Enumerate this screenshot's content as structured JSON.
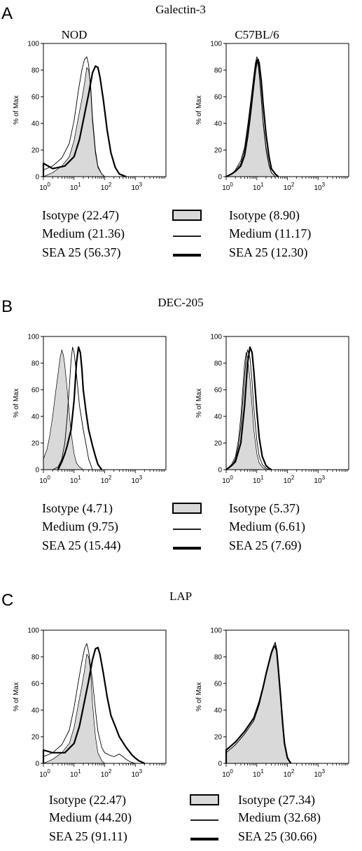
{
  "colors": {
    "isotype_fill": "#d9d9d9",
    "line": "#000000",
    "background": "#ffffff"
  },
  "chart_data": [
    {
      "type": "area",
      "panel_letter": "A",
      "title": "Galectin-3",
      "legend": [
        {
          "series": "Isotype",
          "left_label": "Isotype (22.47)",
          "right_label": "Isotype (8.90)"
        },
        {
          "series": "Medium",
          "left_label": "Medium (21.36)",
          "right_label": "Medium (11.17)"
        },
        {
          "series": "SEA 25",
          "left_label": "SEA 25 (56.37)",
          "right_label": "SEA 25 (12.30)"
        }
      ],
      "plots": [
        {
          "subtitle": "NOD",
          "ylabel": "% of Max",
          "ylim": [
            0,
            100
          ],
          "yticks": [
            "0",
            "20",
            "40",
            "60",
            "80",
            "100"
          ],
          "xscale": "log",
          "xlim": [
            1,
            10000
          ],
          "xticks": [
            "10^0",
            "10^1",
            "10^2",
            "10^3"
          ],
          "series": [
            {
              "name": "Isotype",
              "x": [
                1,
                2,
                4,
                7,
                10,
                14,
                18,
                22,
                26,
                30,
                35,
                40,
                50,
                60,
                80,
                100
              ],
              "y": [
                0,
                3,
                8,
                15,
                27,
                45,
                58,
                70,
                82,
                80,
                68,
                45,
                20,
                8,
                2,
                0
              ]
            },
            {
              "name": "Medium",
              "x": [
                1,
                2,
                4,
                7,
                10,
                14,
                18,
                22,
                26,
                30,
                35,
                40,
                50,
                60,
                80,
                100
              ],
              "y": [
                5,
                8,
                14,
                25,
                42,
                65,
                80,
                88,
                90,
                84,
                65,
                42,
                18,
                7,
                2,
                0
              ]
            },
            {
              "name": "SEA 25",
              "x": [
                1,
                2,
                5,
                10,
                15,
                20,
                30,
                40,
                50,
                60,
                70,
                90,
                120,
                160,
                220,
                300,
                500
              ],
              "y": [
                10,
                6,
                8,
                15,
                28,
                42,
                62,
                78,
                83,
                82,
                75,
                58,
                35,
                18,
                7,
                2,
                0
              ]
            }
          ]
        },
        {
          "subtitle": "C57BL/6",
          "ylabel": "% of Max",
          "ylim": [
            0,
            100
          ],
          "yticks": [
            "0",
            "20",
            "40",
            "60",
            "80",
            "100"
          ],
          "xscale": "log",
          "xlim": [
            1,
            10000
          ],
          "xticks": [
            "10^0",
            "10^1",
            "10^2",
            "10^3"
          ],
          "series": [
            {
              "name": "Isotype",
              "x": [
                1,
                1.5,
                2,
                3,
                4,
                5,
                6,
                7,
                8,
                9,
                10,
                11,
                12,
                14,
                16,
                20,
                25,
                30,
                40
              ],
              "y": [
                0,
                2,
                4,
                10,
                20,
                36,
                50,
                62,
                74,
                84,
                88,
                84,
                76,
                58,
                40,
                20,
                8,
                3,
                0
              ]
            },
            {
              "name": "Medium",
              "x": [
                1,
                1.5,
                2,
                3,
                4,
                5,
                6,
                7,
                8,
                9,
                10,
                11,
                12,
                14,
                16,
                20,
                25,
                30,
                40
              ],
              "y": [
                0,
                2,
                5,
                12,
                22,
                38,
                52,
                65,
                76,
                85,
                90,
                87,
                78,
                60,
                42,
                22,
                9,
                3,
                0
              ]
            },
            {
              "name": "SEA 25",
              "x": [
                1,
                1.5,
                2,
                3,
                4,
                5,
                6,
                7,
                8,
                9,
                10,
                11,
                12,
                14,
                16,
                20,
                25,
                30,
                40,
                50
              ],
              "y": [
                0,
                2,
                4,
                8,
                16,
                30,
                44,
                58,
                70,
                80,
                86,
                88,
                85,
                72,
                55,
                32,
                15,
                6,
                2,
                0
              ]
            }
          ]
        }
      ]
    },
    {
      "type": "area",
      "panel_letter": "B",
      "title": "DEC-205",
      "legend": [
        {
          "series": "Isotype",
          "left_label": "Isotype (4.71)",
          "right_label": "Isotype (5.37)"
        },
        {
          "series": "Medium",
          "left_label": "Medium (9.75)",
          "right_label": "Medium (6.61)"
        },
        {
          "series": "SEA 25",
          "left_label": "SEA 25 (15.44)",
          "right_label": "SEA 25 (7.69)"
        }
      ],
      "plots": [
        {
          "subtitle": "",
          "ylabel": "% of Max",
          "ylim": [
            0,
            100
          ],
          "yticks": [
            "0",
            "20",
            "40",
            "60",
            "80",
            "100"
          ],
          "xscale": "log",
          "xlim": [
            1,
            10000
          ],
          "xticks": [
            "10^0",
            "10^1",
            "10^2",
            "10^3"
          ],
          "series": [
            {
              "name": "Isotype",
              "x": [
                1,
                1.3,
                1.6,
                2,
                2.5,
                3,
                3.5,
                4,
                4.5,
                5,
                6,
                7,
                8,
                10,
                12,
                15,
                20
              ],
              "y": [
                8,
                15,
                25,
                40,
                58,
                72,
                84,
                90,
                86,
                78,
                60,
                42,
                28,
                12,
                5,
                2,
                0
              ]
            },
            {
              "name": "Medium",
              "x": [
                2,
                3,
                4,
                5,
                6,
                7,
                8,
                9,
                10,
                12,
                15,
                20,
                25,
                30,
                40
              ],
              "y": [
                0,
                2,
                8,
                20,
                40,
                62,
                82,
                92,
                88,
                72,
                48,
                30,
                18,
                8,
                0
              ]
            },
            {
              "name": "SEA 25",
              "x": [
                3,
                4,
                5,
                6,
                8,
                10,
                12,
                14,
                16,
                18,
                20,
                25,
                30,
                40,
                50,
                60,
                80
              ],
              "y": [
                0,
                6,
                12,
                18,
                30,
                52,
                80,
                92,
                88,
                76,
                60,
                42,
                30,
                18,
                10,
                4,
                0
              ]
            }
          ]
        },
        {
          "subtitle": "",
          "ylabel": "% of Max",
          "ylim": [
            0,
            100
          ],
          "yticks": [
            "0",
            "20",
            "40",
            "60",
            "80",
            "100"
          ],
          "xscale": "log",
          "xlim": [
            1,
            10000
          ],
          "xticks": [
            "10^0",
            "10^1",
            "10^2",
            "10^3"
          ],
          "series": [
            {
              "name": "Isotype",
              "x": [
                1,
                1.5,
                2,
                2.5,
                3,
                3.5,
                4,
                4.5,
                5,
                6,
                7,
                8,
                10,
                12,
                15,
                20
              ],
              "y": [
                0,
                4,
                10,
                22,
                40,
                62,
                80,
                88,
                84,
                68,
                48,
                30,
                12,
                5,
                2,
                0
              ]
            },
            {
              "name": "Medium",
              "x": [
                1,
                1.5,
                2,
                2.5,
                3,
                3.5,
                4,
                4.5,
                5,
                6,
                7,
                8,
                10,
                12,
                15,
                20,
                25
              ],
              "y": [
                0,
                3,
                8,
                18,
                32,
                52,
                70,
                84,
                90,
                84,
                66,
                46,
                22,
                10,
                4,
                1,
                0
              ]
            },
            {
              "name": "SEA 25",
              "x": [
                1,
                1.5,
                2,
                3,
                4,
                5,
                6,
                7,
                8,
                10,
                12,
                15,
                20,
                25,
                30
              ],
              "y": [
                0,
                3,
                6,
                20,
                48,
                80,
                92,
                88,
                74,
                44,
                24,
                10,
                3,
                1,
                0
              ]
            }
          ]
        }
      ]
    },
    {
      "type": "area",
      "panel_letter": "C",
      "title": "LAP",
      "legend": [
        {
          "series": "Isotype",
          "left_label": "Isotype (22.47)",
          "right_label": "Isotype (27.34)"
        },
        {
          "series": "Medium",
          "left_label": "Medium (44.20)",
          "right_label": "Medium (32.68)"
        },
        {
          "series": "SEA 25",
          "left_label": "SEA 25 (91.11)",
          "right_label": "SEA 25 (30.66)"
        }
      ],
      "plots": [
        {
          "subtitle": "",
          "ylabel": "% of Max",
          "ylim": [
            0,
            100
          ],
          "yticks": [
            "0",
            "20",
            "40",
            "60",
            "80",
            "100"
          ],
          "xscale": "log",
          "xlim": [
            1,
            10000
          ],
          "xticks": [
            "10^0",
            "10^1",
            "10^2",
            "10^3"
          ],
          "series": [
            {
              "name": "Isotype",
              "x": [
                1,
                2,
                4,
                7,
                10,
                14,
                18,
                22,
                26,
                30,
                35,
                40,
                50,
                60,
                80,
                100
              ],
              "y": [
                0,
                3,
                8,
                15,
                27,
                45,
                58,
                70,
                82,
                80,
                68,
                45,
                20,
                8,
                2,
                0
              ]
            },
            {
              "name": "Medium",
              "x": [
                1,
                2,
                4,
                7,
                10,
                14,
                18,
                22,
                26,
                30,
                40,
                50,
                60,
                80,
                100,
                150,
                200,
                300,
                400,
                500,
                700,
                1000
              ],
              "y": [
                5,
                8,
                14,
                25,
                42,
                62,
                76,
                86,
                90,
                84,
                62,
                40,
                24,
                12,
                8,
                6,
                5,
                7,
                5,
                3,
                1,
                0
              ]
            },
            {
              "name": "SEA 25",
              "x": [
                1,
                2,
                5,
                10,
                15,
                20,
                30,
                40,
                50,
                60,
                70,
                90,
                120,
                160,
                220,
                300,
                500,
                800,
                1000,
                1300,
                2000
              ],
              "y": [
                10,
                8,
                8,
                15,
                28,
                42,
                62,
                78,
                86,
                87,
                82,
                68,
                50,
                36,
                28,
                20,
                12,
                6,
                4,
                2,
                0
              ]
            }
          ]
        },
        {
          "subtitle": "",
          "ylabel": "% of Max",
          "ylim": [
            0,
            100
          ],
          "yticks": [
            "0",
            "20",
            "40",
            "60",
            "80",
            "100"
          ],
          "xscale": "log",
          "xlim": [
            1,
            10000
          ],
          "xticks": [
            "10^0",
            "10^1",
            "10^2",
            "10^3"
          ],
          "series": [
            {
              "name": "Isotype",
              "x": [
                1,
                2,
                4,
                8,
                12,
                16,
                20,
                25,
                30,
                35,
                40,
                45,
                50,
                60,
                70,
                80,
                100,
                130
              ],
              "y": [
                8,
                14,
                22,
                32,
                44,
                56,
                66,
                76,
                84,
                88,
                90,
                84,
                72,
                50,
                30,
                16,
                5,
                0
              ]
            },
            {
              "name": "Medium",
              "x": [
                1,
                2,
                4,
                8,
                12,
                16,
                20,
                25,
                30,
                35,
                40,
                45,
                50,
                60,
                70,
                80,
                100,
                130
              ],
              "y": [
                8,
                14,
                22,
                32,
                44,
                56,
                66,
                76,
                84,
                88,
                91,
                86,
                74,
                52,
                31,
                16,
                5,
                0
              ]
            },
            {
              "name": "SEA 25",
              "x": [
                1,
                2,
                4,
                8,
                12,
                16,
                20,
                25,
                30,
                35,
                40,
                45,
                50,
                60,
                70,
                80,
                100,
                130
              ],
              "y": [
                10,
                16,
                24,
                34,
                46,
                57,
                67,
                76,
                83,
                87,
                88,
                84,
                72,
                50,
                30,
                15,
                4,
                0
              ]
            }
          ]
        }
      ]
    }
  ]
}
